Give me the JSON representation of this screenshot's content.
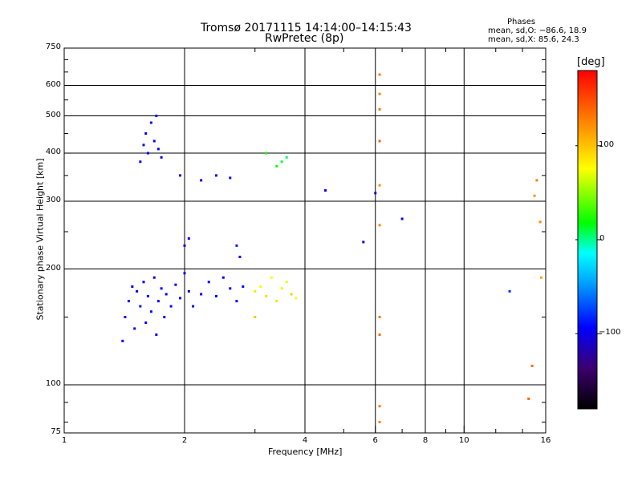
{
  "chart_data": {
    "type": "scatter",
    "title": "Tromsø 20171115 14:14:00–14:15:43",
    "subtitle": "RwPretec (8p)",
    "stats": {
      "heading": "Phases",
      "line1": "mean, sd,O: −86.6, 18.9",
      "line2": "mean, sd,X:  85.6, 24.3"
    },
    "xlabel": "Frequency [MHz]",
    "ylabel": "Stationary phase Virtual Height [km]",
    "xscale": "log",
    "yscale": "log",
    "xlim": [
      1,
      16
    ],
    "ylim": [
      75,
      750
    ],
    "xticks": [
      1,
      2,
      4,
      6,
      8,
      10,
      16
    ],
    "yticks": [
      75,
      100,
      200,
      300,
      400,
      500,
      600,
      750
    ],
    "grid": true,
    "colorbar": {
      "label": "[deg]",
      "range": [
        -180,
        180
      ],
      "ticks": [
        100,
        0,
        -100
      ],
      "colormap": [
        "#000000",
        "#3c006e",
        "#0000ff",
        "#00aaff",
        "#00ffff",
        "#00ff00",
        "#ffff00",
        "#ff8c00",
        "#ff0000"
      ]
    },
    "series": [
      {
        "points": [
          [
            1.4,
            130,
            -95
          ],
          [
            1.42,
            150,
            -100
          ],
          [
            1.45,
            165,
            -90
          ],
          [
            1.48,
            180,
            -98
          ],
          [
            1.5,
            140,
            -92
          ],
          [
            1.52,
            175,
            -105
          ],
          [
            1.55,
            160,
            -88
          ],
          [
            1.58,
            185,
            -96
          ],
          [
            1.6,
            145,
            -100
          ],
          [
            1.62,
            170,
            -94
          ],
          [
            1.65,
            155,
            -90
          ],
          [
            1.68,
            190,
            -102
          ],
          [
            1.7,
            135,
            -95
          ],
          [
            1.72,
            165,
            -97
          ],
          [
            1.75,
            178,
            -93
          ],
          [
            1.78,
            150,
            -99
          ],
          [
            1.8,
            172,
            -91
          ],
          [
            1.85,
            160,
            -95
          ],
          [
            1.9,
            182,
            -100
          ],
          [
            1.95,
            168,
            -92
          ],
          [
            2.0,
            195,
            -94
          ],
          [
            2.05,
            175,
            -98
          ],
          [
            2.1,
            160,
            -90
          ],
          [
            2.2,
            172,
            -95
          ],
          [
            2.3,
            185,
            -100
          ],
          [
            2.4,
            170,
            -93
          ],
          [
            2.5,
            190,
            -96
          ],
          [
            2.6,
            178,
            -92
          ],
          [
            2.7,
            165,
            -95
          ],
          [
            2.8,
            180,
            -90
          ],
          [
            1.55,
            380,
            -95
          ],
          [
            1.58,
            420,
            -90
          ],
          [
            1.6,
            450,
            -100
          ],
          [
            1.62,
            400,
            -92
          ],
          [
            1.65,
            480,
            -98
          ],
          [
            1.68,
            430,
            -95
          ],
          [
            1.7,
            500,
            -88
          ],
          [
            1.72,
            410,
            -94
          ],
          [
            1.75,
            390,
            -96
          ],
          [
            2.2,
            340,
            -95
          ],
          [
            2.4,
            350,
            -90
          ],
          [
            2.6,
            345,
            -92
          ],
          [
            2.7,
            230,
            -85
          ],
          [
            2.75,
            215,
            -88
          ],
          [
            2.0,
            230,
            -95
          ],
          [
            2.05,
            240,
            -100
          ],
          [
            1.95,
            350,
            -90
          ],
          [
            3.0,
            175,
            85
          ],
          [
            3.1,
            180,
            80
          ],
          [
            3.2,
            170,
            90
          ],
          [
            3.3,
            190,
            75
          ],
          [
            3.4,
            165,
            88
          ],
          [
            3.0,
            150,
            100
          ],
          [
            3.5,
            178,
            82
          ],
          [
            3.6,
            185,
            70
          ],
          [
            3.7,
            172,
            95
          ],
          [
            3.8,
            168,
            78
          ],
          [
            3.2,
            400,
            20
          ],
          [
            3.4,
            370,
            15
          ],
          [
            3.5,
            380,
            10
          ],
          [
            3.6,
            390,
            5
          ],
          [
            4.5,
            320,
            -100
          ],
          [
            5.6,
            235,
            -110
          ],
          [
            6.0,
            315,
            -105
          ],
          [
            7.0,
            270,
            -95
          ],
          [
            6.15,
            640,
            130
          ],
          [
            6.15,
            570,
            125
          ],
          [
            6.15,
            520,
            130
          ],
          [
            6.15,
            430,
            140
          ],
          [
            6.15,
            330,
            120
          ],
          [
            6.15,
            260,
            125
          ],
          [
            6.15,
            150,
            130
          ],
          [
            6.15,
            135,
            135
          ],
          [
            6.15,
            88,
            130
          ],
          [
            6.15,
            80,
            125
          ],
          [
            13.0,
            175,
            -80
          ],
          [
            14.5,
            92,
            140
          ],
          [
            14.8,
            112,
            135
          ],
          [
            15.0,
            310,
            120
          ],
          [
            15.2,
            340,
            130
          ],
          [
            15.5,
            265,
            125
          ],
          [
            15.6,
            190,
            110
          ]
        ]
      }
    ]
  }
}
